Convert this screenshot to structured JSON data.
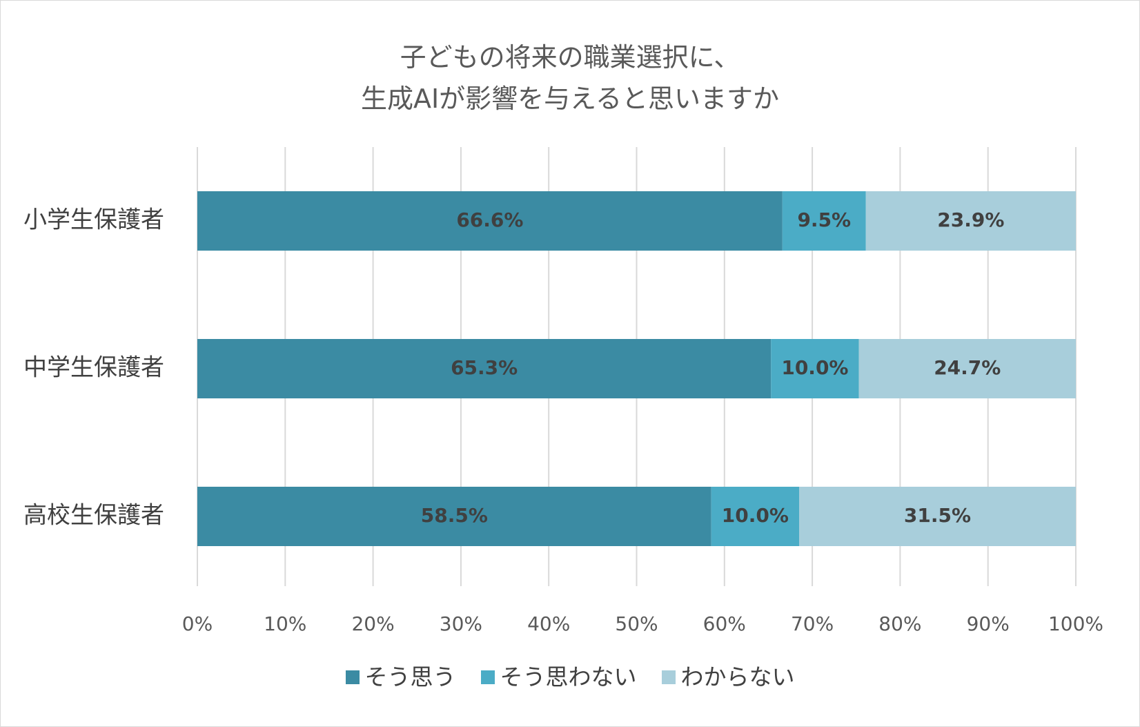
{
  "chart_data": {
    "type": "bar",
    "orientation": "horizontal",
    "stacked": "percent",
    "title": [
      "子どもの将来の職業選択に、",
      "生成AIが影響を与えると思いますか"
    ],
    "categories": [
      "小学生保護者",
      "中学生保護者",
      "高校生保護者"
    ],
    "series": [
      {
        "name": "そう思う",
        "color": "#3b8ba3",
        "values": [
          66.6,
          65.3,
          58.5
        ],
        "labels": [
          "66.6%",
          "65.3%",
          "58.5%"
        ]
      },
      {
        "name": "そう思わない",
        "color": "#4bacc6",
        "values": [
          9.5,
          10.0,
          10.0
        ],
        "labels": [
          "9.5%",
          "10.0%",
          "10.0%"
        ]
      },
      {
        "name": "わからない",
        "color": "#a8cedb",
        "values": [
          23.9,
          24.7,
          31.5
        ],
        "labels": [
          "23.9%",
          "24.7%",
          "31.5%"
        ]
      }
    ],
    "xlim": [
      0,
      100
    ],
    "x_ticks": [
      "0%",
      "10%",
      "20%",
      "30%",
      "40%",
      "50%",
      "60%",
      "70%",
      "80%",
      "90%",
      "100%"
    ],
    "grid": true,
    "legend_position": "bottom"
  }
}
